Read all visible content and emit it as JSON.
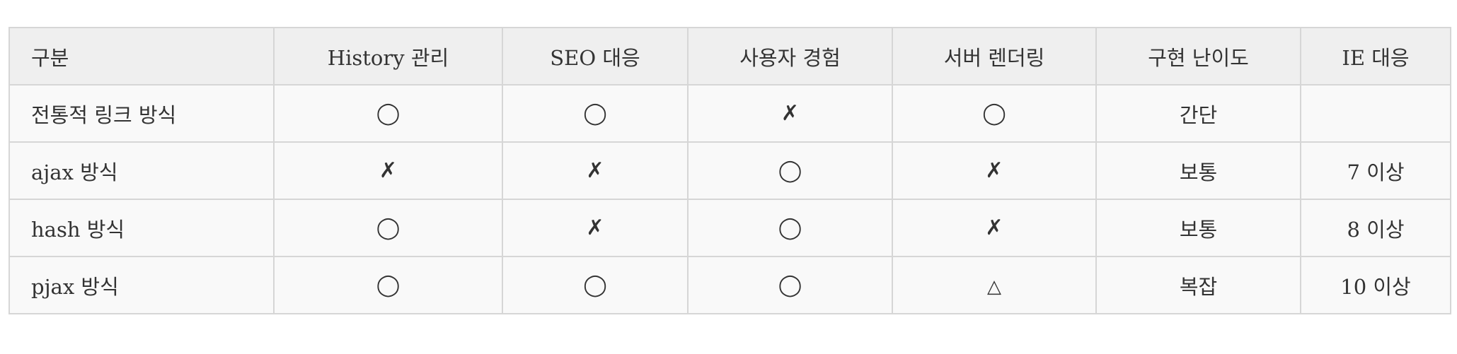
{
  "table": {
    "headers": [
      "구분",
      "History 관리",
      "SEO 대응",
      "사용자 경험",
      "서버 렌더링",
      "구현 난이도",
      "IE 대응"
    ],
    "rows": [
      [
        "전통적 링크 방식",
        "◯",
        "◯",
        "✗",
        "◯",
        "간단",
        ""
      ],
      [
        "ajax 방식",
        "✗",
        "✗",
        "◯",
        "✗",
        "보통",
        "7 이상"
      ],
      [
        "hash 방식",
        "◯",
        "✗",
        "◯",
        "✗",
        "보통",
        "8 이상"
      ],
      [
        "pjax 방식",
        "◯",
        "◯",
        "◯",
        "△",
        "복잡",
        "10 이상"
      ]
    ]
  }
}
